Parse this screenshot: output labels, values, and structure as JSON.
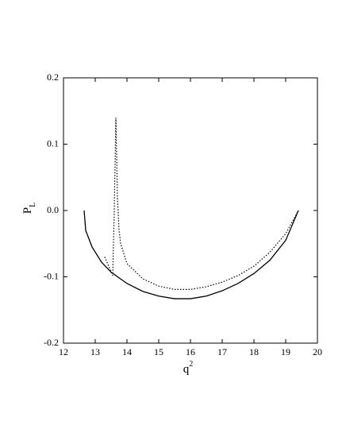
{
  "chart_data": {
    "type": "line",
    "xlabel": {
      "text": "q",
      "sup": "2"
    },
    "ylabel": {
      "text": "P",
      "sub": "L"
    },
    "xlim": [
      12,
      20
    ],
    "xticks": [
      12,
      13,
      14,
      15,
      16,
      17,
      18,
      19,
      20
    ],
    "ylim": [
      -0.2,
      0.2
    ],
    "yticks": [
      -0.2,
      -0.1,
      {
        "value": 0.0,
        "label": "0.0"
      },
      0.1,
      0.2
    ],
    "series": [
      {
        "style": "solid",
        "color": "#000000",
        "x": [
          12.65,
          12.7,
          12.9,
          13.2,
          13.5,
          14.0,
          14.5,
          15.0,
          15.5,
          16.0,
          16.5,
          17.0,
          17.5,
          18.0,
          18.5,
          19.0,
          19.4
        ],
        "values": [
          0.0,
          -0.03,
          -0.055,
          -0.078,
          -0.093,
          -0.11,
          -0.122,
          -0.129,
          -0.133,
          -0.133,
          -0.129,
          -0.121,
          -0.11,
          -0.095,
          -0.075,
          -0.045,
          0.0
        ]
      },
      {
        "style": "dotted",
        "color": "#000000",
        "x": [
          13.3,
          13.55,
          13.6,
          13.65,
          13.7,
          13.75,
          13.8,
          14.0,
          14.5,
          15.0,
          15.5,
          16.0,
          16.5,
          17.0,
          17.5,
          18.0,
          18.5,
          19.0,
          19.4
        ],
        "values": [
          -0.07,
          -0.098,
          0.0,
          0.14,
          0.02,
          -0.03,
          -0.05,
          -0.08,
          -0.103,
          -0.114,
          -0.119,
          -0.119,
          -0.115,
          -0.108,
          -0.098,
          -0.084,
          -0.063,
          -0.035,
          0.0
        ]
      }
    ]
  }
}
